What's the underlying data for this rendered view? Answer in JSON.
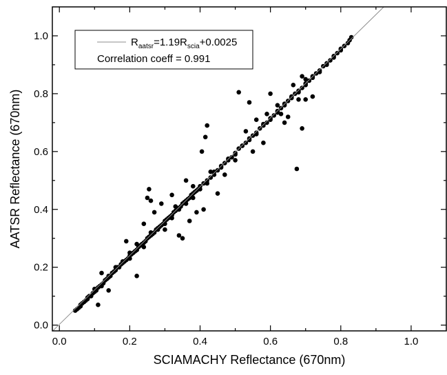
{
  "chart_data": {
    "type": "scatter",
    "xlabel": "SCIAMACHY Reflectance (670nm)",
    "ylabel": "AATSR Reflectance (670nm)",
    "xlim": [
      -0.02,
      1.1
    ],
    "ylim": [
      -0.02,
      1.1
    ],
    "xticks": [
      0.0,
      0.2,
      0.4,
      0.6,
      0.8,
      1.0
    ],
    "yticks": [
      0.0,
      0.2,
      0.4,
      0.6,
      0.8,
      1.0
    ],
    "xtick_labels": [
      "0.0",
      "0.2",
      "0.4",
      "0.6",
      "0.8",
      "1.0"
    ],
    "ytick_labels": [
      "0.0",
      "0.2",
      "0.4",
      "0.6",
      "0.8",
      "1.0"
    ],
    "grid": false,
    "legend_position": "top-left",
    "legend": {
      "fit_R": "R",
      "fit_sub1": "aatsr",
      "fit_mid": "=1.19R",
      "fit_sub2": "scia",
      "fit_end": "+0.0025",
      "correlation": "Correlation coeff = 0.991"
    },
    "fit_line": {
      "slope": 1.19,
      "intercept": 0.0025
    },
    "colors": {
      "points": "#000000",
      "fit_line": "#8c8c8c",
      "axes": "#000000"
    },
    "points": [
      [
        0.045,
        0.05
      ],
      [
        0.05,
        0.055
      ],
      [
        0.055,
        0.06
      ],
      [
        0.06,
        0.07
      ],
      [
        0.065,
        0.075
      ],
      [
        0.07,
        0.08
      ],
      [
        0.075,
        0.085
      ],
      [
        0.08,
        0.09
      ],
      [
        0.085,
        0.1
      ],
      [
        0.09,
        0.1
      ],
      [
        0.095,
        0.11
      ],
      [
        0.1,
        0.115
      ],
      [
        0.105,
        0.12
      ],
      [
        0.11,
        0.13
      ],
      [
        0.115,
        0.135
      ],
      [
        0.12,
        0.14
      ],
      [
        0.125,
        0.145
      ],
      [
        0.13,
        0.155
      ],
      [
        0.135,
        0.16
      ],
      [
        0.14,
        0.165
      ],
      [
        0.145,
        0.17
      ],
      [
        0.15,
        0.18
      ],
      [
        0.155,
        0.185
      ],
      [
        0.16,
        0.19
      ],
      [
        0.165,
        0.2
      ],
      [
        0.17,
        0.2
      ],
      [
        0.175,
        0.21
      ],
      [
        0.18,
        0.215
      ],
      [
        0.185,
        0.22
      ],
      [
        0.19,
        0.225
      ],
      [
        0.195,
        0.23
      ],
      [
        0.2,
        0.24
      ],
      [
        0.205,
        0.245
      ],
      [
        0.21,
        0.25
      ],
      [
        0.215,
        0.255
      ],
      [
        0.22,
        0.26
      ],
      [
        0.225,
        0.27
      ],
      [
        0.23,
        0.275
      ],
      [
        0.235,
        0.28
      ],
      [
        0.24,
        0.285
      ],
      [
        0.245,
        0.29
      ],
      [
        0.25,
        0.3
      ],
      [
        0.255,
        0.305
      ],
      [
        0.26,
        0.31
      ],
      [
        0.265,
        0.315
      ],
      [
        0.27,
        0.32
      ],
      [
        0.275,
        0.33
      ],
      [
        0.28,
        0.335
      ],
      [
        0.285,
        0.34
      ],
      [
        0.29,
        0.345
      ],
      [
        0.295,
        0.35
      ],
      [
        0.3,
        0.36
      ],
      [
        0.305,
        0.365
      ],
      [
        0.31,
        0.37
      ],
      [
        0.315,
        0.375
      ],
      [
        0.32,
        0.38
      ],
      [
        0.325,
        0.39
      ],
      [
        0.33,
        0.395
      ],
      [
        0.335,
        0.4
      ],
      [
        0.34,
        0.405
      ],
      [
        0.345,
        0.41
      ],
      [
        0.35,
        0.42
      ],
      [
        0.355,
        0.425
      ],
      [
        0.36,
        0.43
      ],
      [
        0.365,
        0.435
      ],
      [
        0.37,
        0.44
      ],
      [
        0.375,
        0.45
      ],
      [
        0.38,
        0.455
      ],
      [
        0.385,
        0.46
      ],
      [
        0.39,
        0.465
      ],
      [
        0.395,
        0.47
      ],
      [
        0.4,
        0.48
      ],
      [
        0.41,
        0.49
      ],
      [
        0.42,
        0.5
      ],
      [
        0.43,
        0.51
      ],
      [
        0.44,
        0.52
      ],
      [
        0.45,
        0.535
      ],
      [
        0.46,
        0.55
      ],
      [
        0.47,
        0.56
      ],
      [
        0.48,
        0.57
      ],
      [
        0.49,
        0.58
      ],
      [
        0.5,
        0.595
      ],
      [
        0.51,
        0.61
      ],
      [
        0.52,
        0.62
      ],
      [
        0.53,
        0.63
      ],
      [
        0.54,
        0.645
      ],
      [
        0.55,
        0.655
      ],
      [
        0.56,
        0.665
      ],
      [
        0.57,
        0.68
      ],
      [
        0.58,
        0.69
      ],
      [
        0.59,
        0.7
      ],
      [
        0.6,
        0.715
      ],
      [
        0.61,
        0.725
      ],
      [
        0.62,
        0.74
      ],
      [
        0.63,
        0.75
      ],
      [
        0.64,
        0.76
      ],
      [
        0.65,
        0.775
      ],
      [
        0.66,
        0.785
      ],
      [
        0.67,
        0.8
      ],
      [
        0.68,
        0.81
      ],
      [
        0.69,
        0.82
      ],
      [
        0.7,
        0.835
      ],
      [
        0.71,
        0.845
      ],
      [
        0.72,
        0.855
      ],
      [
        0.73,
        0.87
      ],
      [
        0.74,
        0.88
      ],
      [
        0.75,
        0.895
      ],
      [
        0.76,
        0.905
      ],
      [
        0.77,
        0.915
      ],
      [
        0.78,
        0.93
      ],
      [
        0.79,
        0.94
      ],
      [
        0.8,
        0.95
      ],
      [
        0.81,
        0.965
      ],
      [
        0.82,
        0.975
      ],
      [
        0.825,
        0.985
      ],
      [
        0.83,
        0.995
      ],
      [
        0.06,
        0.065
      ],
      [
        0.08,
        0.095
      ],
      [
        0.1,
        0.125
      ],
      [
        0.12,
        0.135
      ],
      [
        0.14,
        0.17
      ],
      [
        0.16,
        0.2
      ],
      [
        0.18,
        0.22
      ],
      [
        0.2,
        0.23
      ],
      [
        0.22,
        0.26
      ],
      [
        0.24,
        0.27
      ],
      [
        0.26,
        0.32
      ],
      [
        0.28,
        0.33
      ],
      [
        0.3,
        0.35
      ],
      [
        0.32,
        0.37
      ],
      [
        0.34,
        0.4
      ],
      [
        0.36,
        0.42
      ],
      [
        0.38,
        0.44
      ],
      [
        0.4,
        0.47
      ],
      [
        0.42,
        0.49
      ],
      [
        0.44,
        0.53
      ],
      [
        0.46,
        0.545
      ],
      [
        0.48,
        0.575
      ],
      [
        0.5,
        0.59
      ],
      [
        0.52,
        0.62
      ],
      [
        0.54,
        0.64
      ],
      [
        0.56,
        0.66
      ],
      [
        0.58,
        0.695
      ],
      [
        0.6,
        0.71
      ],
      [
        0.62,
        0.735
      ],
      [
        0.64,
        0.765
      ],
      [
        0.66,
        0.79
      ],
      [
        0.68,
        0.805
      ],
      [
        0.7,
        0.83
      ],
      [
        0.72,
        0.86
      ],
      [
        0.74,
        0.875
      ],
      [
        0.76,
        0.9
      ],
      [
        0.78,
        0.925
      ],
      [
        0.8,
        0.955
      ],
      [
        0.11,
        0.07
      ],
      [
        0.12,
        0.18
      ],
      [
        0.14,
        0.12
      ],
      [
        0.19,
        0.29
      ],
      [
        0.2,
        0.25
      ],
      [
        0.22,
        0.17
      ],
      [
        0.22,
        0.28
      ],
      [
        0.24,
        0.35
      ],
      [
        0.25,
        0.44
      ],
      [
        0.255,
        0.47
      ],
      [
        0.26,
        0.43
      ],
      [
        0.27,
        0.39
      ],
      [
        0.29,
        0.42
      ],
      [
        0.3,
        0.33
      ],
      [
        0.32,
        0.45
      ],
      [
        0.33,
        0.41
      ],
      [
        0.34,
        0.31
      ],
      [
        0.35,
        0.3
      ],
      [
        0.36,
        0.5
      ],
      [
        0.37,
        0.36
      ],
      [
        0.38,
        0.48
      ],
      [
        0.39,
        0.39
      ],
      [
        0.405,
        0.6
      ],
      [
        0.41,
        0.4
      ],
      [
        0.415,
        0.65
      ],
      [
        0.42,
        0.69
      ],
      [
        0.43,
        0.53
      ],
      [
        0.45,
        0.455
      ],
      [
        0.47,
        0.52
      ],
      [
        0.5,
        0.57
      ],
      [
        0.51,
        0.805
      ],
      [
        0.53,
        0.67
      ],
      [
        0.54,
        0.77
      ],
      [
        0.55,
        0.6
      ],
      [
        0.56,
        0.71
      ],
      [
        0.58,
        0.63
      ],
      [
        0.59,
        0.73
      ],
      [
        0.6,
        0.8
      ],
      [
        0.62,
        0.76
      ],
      [
        0.63,
        0.73
      ],
      [
        0.64,
        0.7
      ],
      [
        0.65,
        0.72
      ],
      [
        0.665,
        0.83
      ],
      [
        0.675,
        0.54
      ],
      [
        0.68,
        0.78
      ],
      [
        0.69,
        0.86
      ],
      [
        0.69,
        0.68
      ],
      [
        0.7,
        0.78
      ],
      [
        0.7,
        0.85
      ],
      [
        0.72,
        0.79
      ]
    ]
  }
}
